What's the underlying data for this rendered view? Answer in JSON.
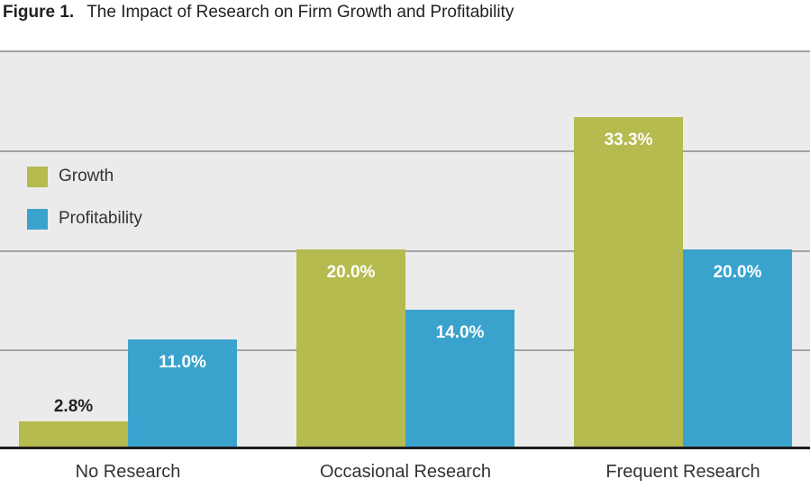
{
  "title": {
    "prefix": "Figure 1.",
    "text": "The Impact of Research on Firm Growth and Profitability"
  },
  "chart_data": {
    "type": "bar",
    "title": "Figure 1. The Impact of Research on Firm Growth and Profitability",
    "categories": [
      "No Research",
      "Occasional Research",
      "Frequent Research"
    ],
    "series": [
      {
        "name": "Growth",
        "color": "#b5bb4f",
        "values": [
          2.8,
          20.0,
          33.3
        ],
        "labels": [
          "2.8%",
          "20.0%",
          "33.3%"
        ]
      },
      {
        "name": "Profitability",
        "color": "#3aa3cd",
        "values": [
          11.0,
          14.0,
          20.0
        ],
        "labels": [
          "11.0%",
          "14.0%",
          "20.0%"
        ]
      }
    ],
    "xlabel": "",
    "ylabel": "",
    "ylim": [
      0,
      40
    ],
    "gridlines": [
      10,
      20,
      30,
      40
    ],
    "grid": true,
    "y_tick_labels_visible": false,
    "legend_position": "upper-left-inside",
    "value_label_color_inside": "#ffffff",
    "value_label_color_outside": "#231f20"
  },
  "colors": {
    "plot_background": "#ebebeb",
    "gridline": "#a3a3a3",
    "axis_line": "#1e1c1d",
    "title_text": "#231f20",
    "category_label": "#333333"
  }
}
